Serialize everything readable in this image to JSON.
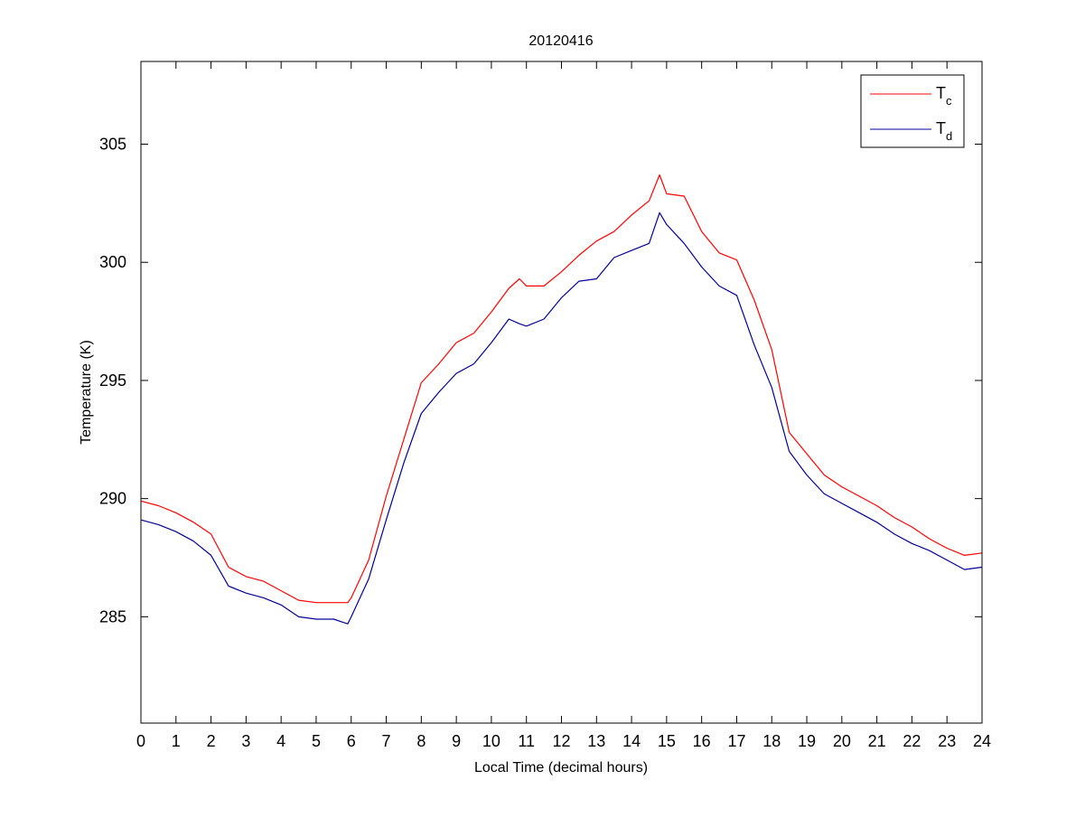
{
  "window": {
    "background": "#ffffff"
  },
  "chart_data": {
    "type": "line",
    "title": "20120416",
    "xlabel": "Local Time (decimal hours)",
    "ylabel": "Temperature (K)",
    "xlim": [
      0,
      24
    ],
    "ylim": [
      280.5,
      308.5
    ],
    "xticks": [
      0,
      1,
      2,
      3,
      4,
      5,
      6,
      7,
      8,
      9,
      10,
      11,
      12,
      13,
      14,
      15,
      16,
      17,
      18,
      19,
      20,
      21,
      22,
      23,
      24
    ],
    "yticks": [
      285,
      290,
      295,
      300,
      305
    ],
    "grid": false,
    "legend": {
      "position": "top-right",
      "entries": [
        {
          "base": "T",
          "sub": "c"
        },
        {
          "base": "T",
          "sub": "d"
        }
      ]
    },
    "series": [
      {
        "name": "Tc",
        "color": "#ff0000",
        "x": [
          0,
          0.5,
          1,
          1.5,
          2,
          2.5,
          3,
          3.5,
          4,
          4.5,
          5,
          5.5,
          5.9,
          6,
          6.5,
          7,
          7.5,
          8,
          8.5,
          9,
          9.5,
          10,
          10.5,
          10.8,
          11,
          11.5,
          12,
          12.5,
          13,
          13.5,
          14,
          14.5,
          14.8,
          15,
          15.5,
          16,
          16.5,
          17,
          17.5,
          18,
          18.5,
          19,
          19.5,
          20,
          20.5,
          21,
          21.5,
          22,
          22.5,
          23,
          23.5,
          24
        ],
        "y": [
          289.9,
          289.7,
          289.4,
          289.0,
          288.5,
          287.1,
          286.7,
          286.5,
          286.1,
          285.7,
          285.6,
          285.6,
          285.6,
          285.8,
          287.4,
          290.1,
          292.5,
          294.9,
          295.7,
          296.6,
          297.0,
          297.9,
          298.9,
          299.3,
          299.0,
          299.0,
          299.6,
          300.3,
          300.9,
          301.3,
          302.0,
          302.6,
          303.7,
          302.9,
          302.8,
          301.3,
          300.4,
          300.1,
          298.4,
          296.3,
          292.8,
          291.9,
          291.0,
          290.5,
          290.1,
          289.7,
          289.2,
          288.8,
          288.3,
          287.9,
          287.6,
          287.7
        ]
      },
      {
        "name": "Td",
        "color": "#000099",
        "x": [
          0,
          0.5,
          1,
          1.5,
          2,
          2.5,
          3,
          3.5,
          4,
          4.5,
          5,
          5.5,
          5.9,
          6,
          6.5,
          7,
          7.5,
          8,
          8.5,
          9,
          9.5,
          10,
          10.5,
          10.8,
          11,
          11.5,
          12,
          12.5,
          13,
          13.5,
          14,
          14.5,
          14.8,
          15,
          15.5,
          16,
          16.5,
          17,
          17.5,
          18,
          18.5,
          19,
          19.5,
          20,
          20.5,
          21,
          21.5,
          22,
          22.5,
          23,
          23.5,
          24
        ],
        "y": [
          289.1,
          288.9,
          288.6,
          288.2,
          287.6,
          286.3,
          286.0,
          285.8,
          285.5,
          285.0,
          284.9,
          284.9,
          284.7,
          285.0,
          286.6,
          289.1,
          291.5,
          293.6,
          294.5,
          295.3,
          295.7,
          296.6,
          297.6,
          297.4,
          297.3,
          297.6,
          298.5,
          299.2,
          299.3,
          300.2,
          300.5,
          300.8,
          302.1,
          301.6,
          300.8,
          299.8,
          299.0,
          298.6,
          296.5,
          294.7,
          292.0,
          291.0,
          290.2,
          289.8,
          289.4,
          289.0,
          288.5,
          288.1,
          287.8,
          287.4,
          287.0,
          287.1
        ]
      }
    ]
  }
}
